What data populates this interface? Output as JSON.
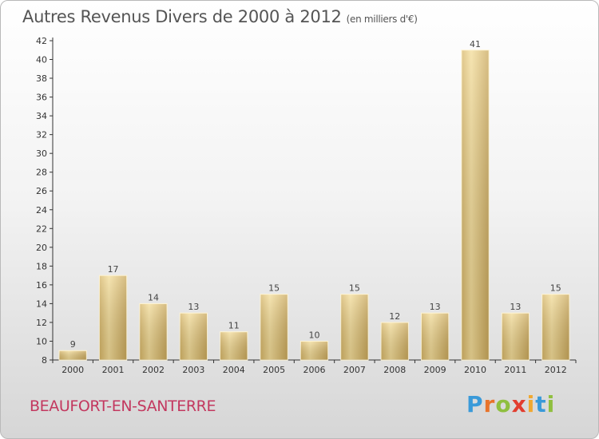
{
  "title": "Autres Revenus Divers de 2000 à 2012",
  "title_unit": "(en milliers d'€)",
  "city": "BEAUFORT-EN-SANTERRE",
  "logo": {
    "letters": [
      "P",
      "r",
      "o",
      "x",
      "i",
      "t",
      "i"
    ],
    "colors": [
      "#3a9ad9",
      "#e8732a",
      "#8fbf3f",
      "#e23d2f",
      "#f0a830",
      "#3a9ad9",
      "#8fbf3f"
    ]
  },
  "chart_data": {
    "type": "bar",
    "categories": [
      "2000",
      "2001",
      "2002",
      "2003",
      "2004",
      "2005",
      "2006",
      "2007",
      "2008",
      "2009",
      "2010",
      "2011",
      "2012"
    ],
    "values": [
      9,
      17,
      14,
      13,
      11,
      15,
      10,
      15,
      12,
      13,
      41,
      13,
      15
    ],
    "ylim": [
      8,
      42
    ],
    "yticks": [
      8,
      10,
      12,
      14,
      16,
      18,
      20,
      22,
      24,
      26,
      28,
      30,
      32,
      34,
      36,
      38,
      40,
      42
    ],
    "grid": false,
    "bar_color": "#e2c57a"
  }
}
